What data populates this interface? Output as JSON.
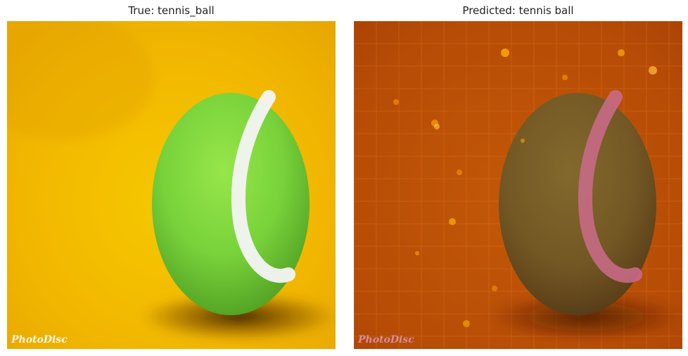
{
  "left_panel": {
    "title": "True: tennis_ball",
    "watermark": "PhotoDisc"
  },
  "right_panel": {
    "title": "Predicted: tennis ball",
    "watermark": "PhotoDisc"
  },
  "colors": {
    "background_yellow": "#f2b800",
    "ball_green": "#7bd33a",
    "heatmap_orange": "#c55a0a",
    "heatmap_hotspot": "#ffb000"
  }
}
